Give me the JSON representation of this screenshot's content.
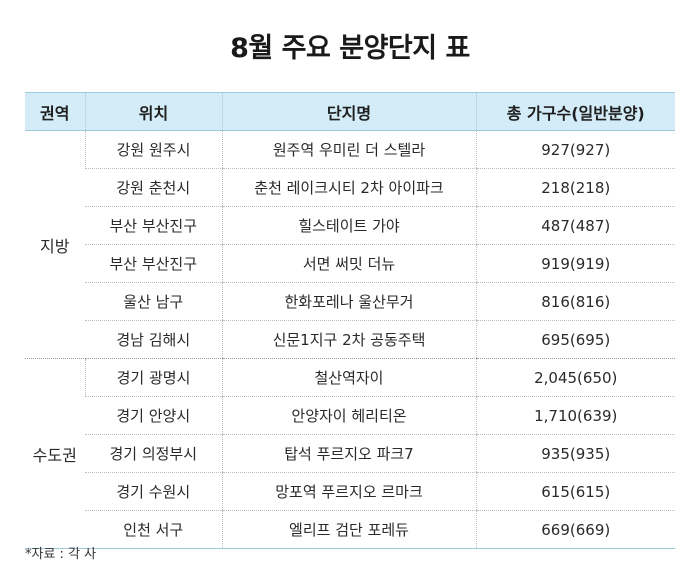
{
  "title": "8월 주요 분양단지 표",
  "table": {
    "headers": [
      "권역",
      "위치",
      "단지명",
      "총 가구수(일반분양)"
    ],
    "groups": [
      {
        "region": "지방",
        "rows": [
          {
            "location": "강원 원주시",
            "name": "원주역 우미린 더 스텔라",
            "units": "927(927)"
          },
          {
            "location": "강원 춘천시",
            "name": "춘천 레이크시티 2차 아이파크",
            "units": "218(218)"
          },
          {
            "location": "부산 부산진구",
            "name": "힐스테이트 가야",
            "units": "487(487)"
          },
          {
            "location": "부산 부산진구",
            "name": "서면 써밋 더뉴",
            "units": "919(919)"
          },
          {
            "location": "울산 남구",
            "name": "한화포레나 울산무거",
            "units": "816(816)"
          },
          {
            "location": "경남 김해시",
            "name": "신문1지구 2차 공동주택",
            "units": "695(695)"
          }
        ]
      },
      {
        "region": "수도권",
        "rows": [
          {
            "location": "경기 광명시",
            "name": "철산역자이",
            "units": "2,045(650)"
          },
          {
            "location": "경기 안양시",
            "name": "안양자이 헤리티온",
            "units": "1,710(639)"
          },
          {
            "location": "경기 의정부시",
            "name": "탑석 푸르지오 파크7",
            "units": "935(935)"
          },
          {
            "location": "경기 수원시",
            "name": "망포역 푸르지오 르마크",
            "units": "615(615)"
          },
          {
            "location": "인천 서구",
            "name": "엘리프 검단 포레듀",
            "units": "669(669)"
          }
        ]
      }
    ]
  },
  "source": "*자료 : 각 사",
  "colors": {
    "header_bg": "#d3ecf7",
    "border": "#9fc9dd",
    "text": "#222222"
  }
}
